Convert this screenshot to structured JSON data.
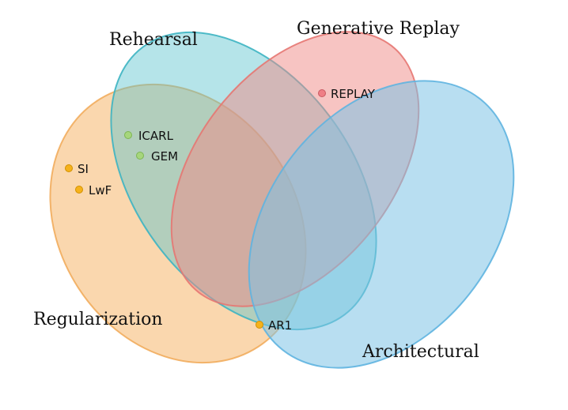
{
  "sets": {
    "rehearsal": {
      "label": "Rehearsal",
      "color": "#5cc4cf"
    },
    "generative": {
      "label": "Generative Replay",
      "color": "#f08a86"
    },
    "regularization": {
      "label": "Regularization",
      "color": "#f5b76c"
    },
    "architectural": {
      "label": "Architectural",
      "color": "#7ec3e6"
    }
  },
  "methods": {
    "replay": {
      "label": "REPLAY",
      "color": "#ef7f86"
    },
    "icarl": {
      "label": "ICARL",
      "color": "#a6d67c"
    },
    "gem": {
      "label": "GEM",
      "color": "#a6d67c"
    },
    "si": {
      "label": "SI",
      "color": "#f6b21b"
    },
    "lwf": {
      "label": "LwF",
      "color": "#f6b21b"
    },
    "ar1": {
      "label": "AR1",
      "color": "#f6b21b"
    }
  }
}
